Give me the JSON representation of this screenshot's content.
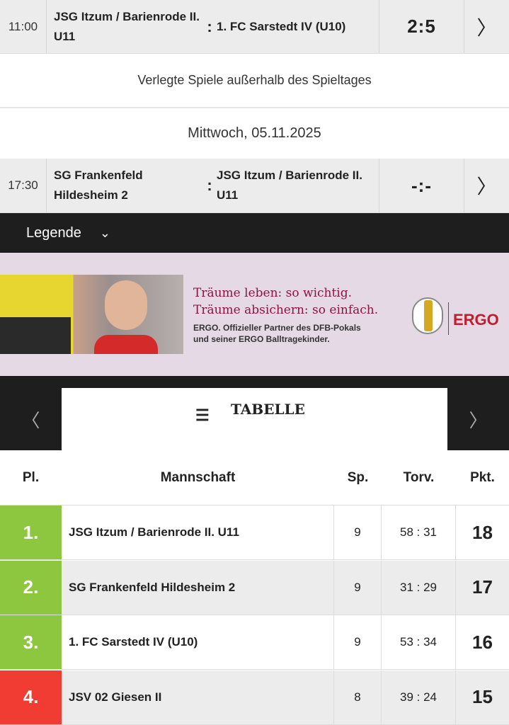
{
  "matches": [
    {
      "time": "11:00",
      "home": "JSG Itzum / Barienrode II. U11",
      "away": "1. FC Sarstedt IV (U10)",
      "score": "2:5"
    },
    {
      "time": "17:30",
      "home": "SG Frankenfeld Hildesheim 2",
      "away": "JSG Itzum / Barienrode II. U11",
      "score": "-:-"
    }
  ],
  "section_title": "Verlegte Spiele außerhalb des Spieltages",
  "date_header": "Mittwoch, 05.11.2025",
  "legend_label": "Legende",
  "ad": {
    "line1": "Träume leben: so wichtig.",
    "line2": "Träume absichern: so einfach.",
    "line3": "ERGO. Offizieller Partner des DFB-Pokals",
    "line4": "und seiner ERGO Balltragekinder.",
    "brand": "ERGO",
    "headline_color": "#8c1440",
    "brand_color": "#bf1e2e"
  },
  "table": {
    "title": "TABELLE",
    "headers": {
      "place": "Pl.",
      "team": "Mannschaft",
      "games": "Sp.",
      "goals": "Torv.",
      "points": "Pkt."
    },
    "rows": [
      {
        "place": "1.",
        "team": "JSG Itzum / Barienrode II. U11",
        "games": "9",
        "goals": "58 : 31",
        "points": "18",
        "color": "#8dc63f"
      },
      {
        "place": "2.",
        "team": "SG Frankenfeld Hildesheim 2",
        "games": "9",
        "goals": "31 : 29",
        "points": "17",
        "color": "#8dc63f"
      },
      {
        "place": "3.",
        "team": "1. FC Sarstedt IV (U10)",
        "games": "9",
        "goals": "53 : 34",
        "points": "16",
        "color": "#8dc63f"
      },
      {
        "place": "4.",
        "team": "JSV 02 Giesen II",
        "games": "8",
        "goals": "39 : 24",
        "points": "15",
        "color": "#f03c32"
      }
    ]
  }
}
